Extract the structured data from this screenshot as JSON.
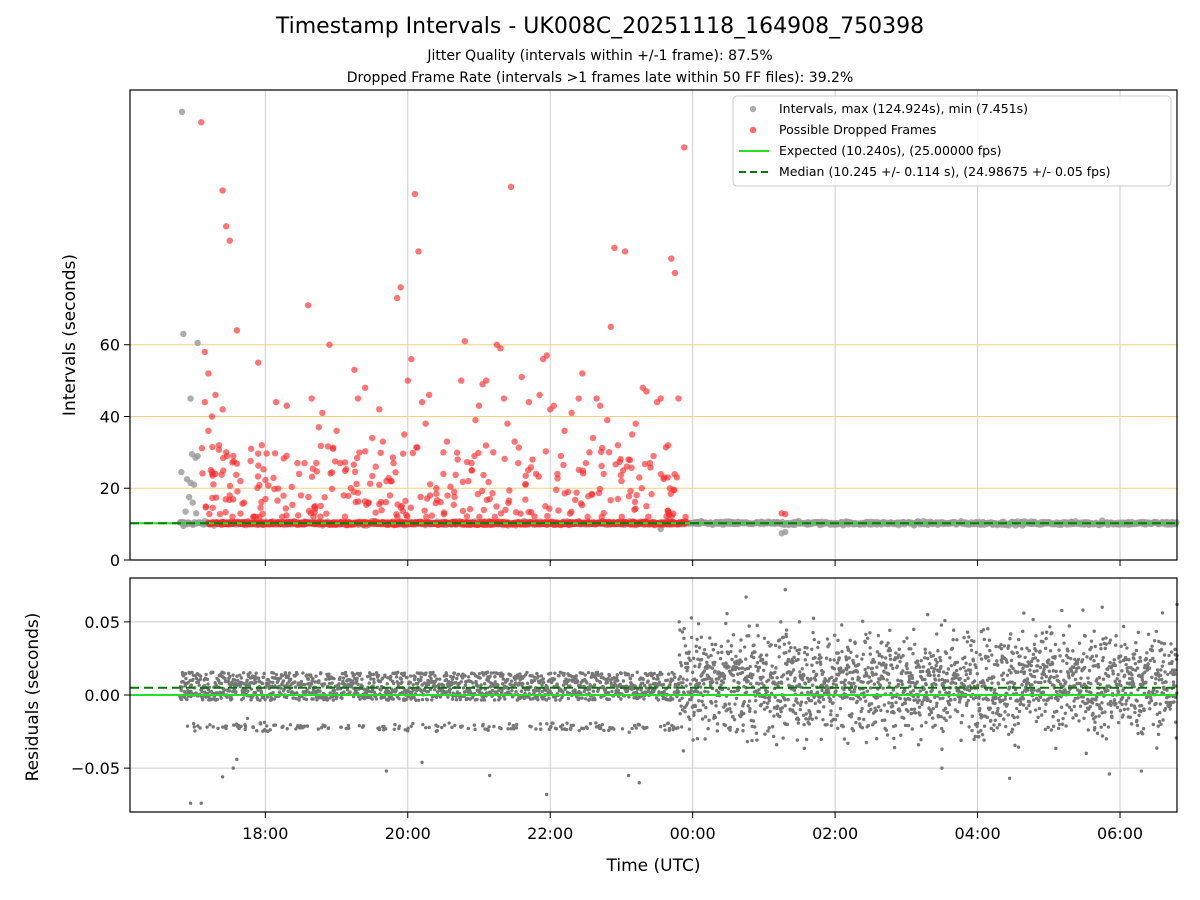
{
  "title": "Timestamp Intervals - UK008C_20251118_164908_750398",
  "subtitle_1": "Jitter Quality (intervals within +/-1 frame): 87.5%",
  "subtitle_2": "Dropped Frame Rate (intervals >1 frames late within 50 FF files): 39.2%",
  "colors": {
    "intervals": "#999999",
    "dropped": "#ff2a2a",
    "expected": "#22e022",
    "median": "#007a00",
    "threshold_lines": "#f5d27a",
    "residuals": "#777777",
    "grid": "#cccccc"
  },
  "chart_data": [
    {
      "type": "scatter",
      "panel": "top",
      "ylabel": "Intervals (seconds)",
      "x_axis": "time (UTC, hours)",
      "xlim": [
        16.1,
        30.8
      ],
      "ylim": [
        0,
        131
      ],
      "yticks": [
        0,
        20,
        40,
        60
      ],
      "ytick_labels": [
        "0",
        "20",
        "40",
        "60"
      ],
      "threshold_lines_y": [
        20,
        40,
        60
      ],
      "legend_position": "upper-right",
      "legend": [
        "Intervals, max (124.924s), min (7.451s)",
        "Possible Dropped Frames",
        "Expected (10.240s), (25.00000 fps)",
        "Median (10.245 +/- 0.114 s), (24.98675 +/- 0.05 fps)"
      ],
      "expected_interval": 10.24,
      "median_interval": 10.245,
      "max_interval": 124.924,
      "min_interval": 7.451,
      "series": [
        {
          "name": "Intervals, max (124.924s), min (7.451s)",
          "points": [
            [
              16.83,
              124.9
            ],
            [
              16.85,
              63
            ],
            [
              16.95,
              45
            ],
            [
              17.05,
              60.5
            ],
            [
              16.82,
              24.5
            ],
            [
              16.9,
              22.5
            ],
            [
              16.95,
              21.5
            ],
            [
              17.0,
              21
            ],
            [
              17.05,
              29
            ],
            [
              16.97,
              29.5
            ],
            [
              17.02,
              28.5
            ],
            [
              16.93,
              17.5
            ],
            [
              16.98,
              16
            ],
            [
              17.03,
              13
            ],
            [
              16.88,
              13.5
            ],
            [
              16.83,
              10.5
            ],
            [
              16.85,
              9.5
            ],
            [
              23.55,
              8.6
            ],
            [
              25.25,
              7.45
            ],
            [
              25.3,
              7.8
            ],
            [
              29.7,
              9.8
            ],
            [
              29.75,
              11
            ]
          ],
          "band": {
            "x_from": 16.8,
            "x_to": 30.8,
            "y": 10.24
          }
        },
        {
          "name": "Possible Dropped Frames",
          "points": [
            [
              17.1,
              122
            ],
            [
              17.4,
              103
            ],
            [
              17.45,
              93
            ],
            [
              17.5,
              89
            ],
            [
              17.6,
              64
            ],
            [
              17.9,
              55
            ],
            [
              17.15,
              58
            ],
            [
              17.2,
              52
            ],
            [
              17.3,
              46
            ],
            [
              17.4,
              42
            ],
            [
              17.15,
              44
            ],
            [
              17.25,
              40
            ],
            [
              17.35,
              32
            ],
            [
              17.45,
              30
            ],
            [
              17.55,
              29
            ],
            [
              17.65,
              22
            ],
            [
              17.2,
              36
            ],
            [
              17.3,
              24
            ],
            [
              17.5,
              18
            ],
            [
              17.7,
              16
            ],
            [
              17.8,
              31
            ],
            [
              17.95,
              32
            ],
            [
              18.15,
              44
            ],
            [
              18.3,
              43
            ],
            [
              18.45,
              27
            ],
            [
              18.55,
              27
            ],
            [
              18.6,
              71
            ],
            [
              18.65,
              45
            ],
            [
              18.75,
              37
            ],
            [
              18.8,
              41
            ],
            [
              18.9,
              60
            ],
            [
              18.95,
              31
            ],
            [
              19.0,
              36
            ],
            [
              19.05,
              27
            ],
            [
              19.1,
              18
            ],
            [
              19.25,
              53
            ],
            [
              19.3,
              45
            ],
            [
              19.4,
              48
            ],
            [
              19.5,
              34
            ],
            [
              19.55,
              26
            ],
            [
              19.6,
              42
            ],
            [
              19.65,
              33
            ],
            [
              19.7,
              22
            ],
            [
              19.75,
              18
            ],
            [
              19.8,
              27
            ],
            [
              19.85,
              73
            ],
            [
              19.9,
              76
            ],
            [
              19.95,
              35
            ],
            [
              20.0,
              50
            ],
            [
              20.05,
              56
            ],
            [
              20.1,
              102
            ],
            [
              20.15,
              86
            ],
            [
              20.2,
              44
            ],
            [
              20.25,
              38
            ],
            [
              20.3,
              46
            ],
            [
              20.4,
              20
            ],
            [
              20.5,
              24
            ],
            [
              20.55,
              33
            ],
            [
              20.7,
              28
            ],
            [
              20.75,
              50
            ],
            [
              20.8,
              61
            ],
            [
              20.85,
              22
            ],
            [
              20.9,
              25
            ],
            [
              20.95,
              39
            ],
            [
              21.0,
              43
            ],
            [
              21.05,
              49
            ],
            [
              21.1,
              50
            ],
            [
              21.2,
              30
            ],
            [
              21.25,
              60
            ],
            [
              21.3,
              59
            ],
            [
              21.35,
              45
            ],
            [
              21.4,
              38
            ],
            [
              21.45,
              104
            ],
            [
              21.5,
              33
            ],
            [
              21.55,
              27
            ],
            [
              21.6,
              51
            ],
            [
              21.7,
              44
            ],
            [
              21.75,
              28
            ],
            [
              21.8,
              24
            ],
            [
              21.85,
              46
            ],
            [
              21.9,
              56
            ],
            [
              21.95,
              57
            ],
            [
              22.0,
              42
            ],
            [
              22.05,
              43
            ],
            [
              22.1,
              24
            ],
            [
              22.15,
              29
            ],
            [
              22.2,
              36
            ],
            [
              22.3,
              41
            ],
            [
              22.4,
              45
            ],
            [
              22.45,
              52
            ],
            [
              22.5,
              27
            ],
            [
              22.55,
              30
            ],
            [
              22.6,
              34
            ],
            [
              22.65,
              45
            ],
            [
              22.7,
              43
            ],
            [
              22.75,
              24
            ],
            [
              22.8,
              39
            ],
            [
              22.85,
              65
            ],
            [
              22.9,
              87
            ],
            [
              22.95,
              32
            ],
            [
              23.0,
              22
            ],
            [
              23.05,
              86
            ],
            [
              23.1,
              28
            ],
            [
              23.15,
              35
            ],
            [
              23.2,
              38
            ],
            [
              23.25,
              23
            ],
            [
              23.3,
              48
            ],
            [
              23.35,
              47
            ],
            [
              23.4,
              27
            ],
            [
              23.45,
              29
            ],
            [
              23.5,
              44
            ],
            [
              23.55,
              45
            ],
            [
              23.6,
              23
            ],
            [
              23.65,
              23
            ],
            [
              23.7,
              84
            ],
            [
              23.75,
              80
            ],
            [
              23.8,
              45
            ],
            [
              23.88,
              115
            ],
            [
              23.9,
              12
            ],
            [
              23.92,
              10.5
            ],
            [
              25.25,
              13
            ],
            [
              25.3,
              12.8
            ],
            [
              18.5,
              18
            ],
            [
              18.7,
              15
            ],
            [
              19.2,
              20
            ],
            [
              19.45,
              16
            ],
            [
              20.65,
              19
            ],
            [
              21.15,
              17
            ],
            [
              21.65,
              21
            ],
            [
              22.25,
              19
            ],
            [
              22.95,
              17
            ],
            [
              23.35,
              15
            ]
          ],
          "band": {
            "x_from": 17.2,
            "x_to": 23.9,
            "y": 10.24
          }
        }
      ]
    },
    {
      "type": "scatter",
      "panel": "bottom",
      "ylabel": "Residuals (seconds)",
      "xlabel": "Time (UTC)",
      "xlim": [
        16.1,
        30.8
      ],
      "ylim": [
        -0.08,
        0.08
      ],
      "yticks": [
        0.05,
        0.0,
        -0.05
      ],
      "ytick_labels": [
        "0.05",
        "0.00",
        "−0.05"
      ],
      "xticks": [
        18,
        20,
        22,
        24,
        26,
        28,
        30
      ],
      "xtick_labels": [
        "18:00",
        "20:00",
        "22:00",
        "00:00",
        "02:00",
        "04:00",
        "06:00"
      ],
      "expected_residual": 0.0,
      "median_residual": 0.005,
      "series": [
        {
          "name": "Residuals",
          "segments": [
            {
              "x_from": 16.8,
              "x_to": 23.8,
              "mean": 0.006,
              "spread": 0.012,
              "low_band": -0.022,
              "outliers": [
                [
                  16.95,
                  -0.074
                ],
                [
                  17.1,
                  -0.074
                ],
                [
                  17.4,
                  -0.056
                ],
                [
                  17.55,
                  -0.05
                ],
                [
                  17.6,
                  -0.044
                ],
                [
                  17.75,
                  -0.016
                ],
                [
                  19.7,
                  -0.052
                ],
                [
                  20.2,
                  -0.046
                ],
                [
                  21.15,
                  -0.055
                ],
                [
                  21.95,
                  -0.068
                ],
                [
                  23.1,
                  -0.055
                ],
                [
                  23.25,
                  -0.06
                ]
              ]
            },
            {
              "x_from": 23.8,
              "x_to": 30.8,
              "mean": 0.008,
              "spread": 0.022,
              "outliers": [
                [
                  24.75,
                  0.067
                ],
                [
                  25.3,
                  0.072
                ],
                [
                  25.5,
                  0.05
                ],
                [
                  27.5,
                  -0.05
                ],
                [
                  28.45,
                  -0.057
                ],
                [
                  29.75,
                  0.06
                ],
                [
                  30.8,
                  0.062
                ],
                [
                  28.65,
                  0.056
                ],
                [
                  27.3,
                  0.055
                ],
                [
                  30.3,
                  -0.052
                ],
                [
                  29.85,
                  -0.054
                ]
              ]
            }
          ]
        }
      ]
    }
  ]
}
